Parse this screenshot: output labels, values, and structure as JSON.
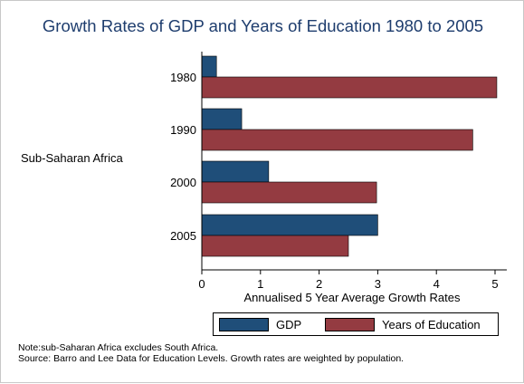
{
  "colors": {
    "gdp": "#1f4e79",
    "education": "#943b41",
    "title": "#1e3d6e"
  },
  "chart_data": {
    "type": "bar",
    "orientation": "horizontal",
    "title": "Growth Rates of GDP and Years of Education 1980 to 2005",
    "group_label": "Sub-Saharan Africa",
    "categories": [
      "1980",
      "1990",
      "2000",
      "2005"
    ],
    "series": [
      {
        "name": "GDP",
        "values": [
          0.25,
          0.68,
          1.14,
          3.0
        ]
      },
      {
        "name": "Years of Education",
        "values": [
          5.03,
          4.62,
          2.98,
          2.5
        ]
      }
    ],
    "xlabel": "Annualised 5 Year Average Growth Rates",
    "xlim": [
      0,
      5.2
    ],
    "xticks": [
      0,
      1,
      2,
      3,
      4,
      5
    ],
    "grid": false,
    "legend_position": "bottom"
  },
  "notes": {
    "line1": "Note:sub-Saharan Africa excludes South Africa.",
    "line2": "Source: Barro and Lee Data for Education Levels. Growth rates are weighted by population."
  }
}
